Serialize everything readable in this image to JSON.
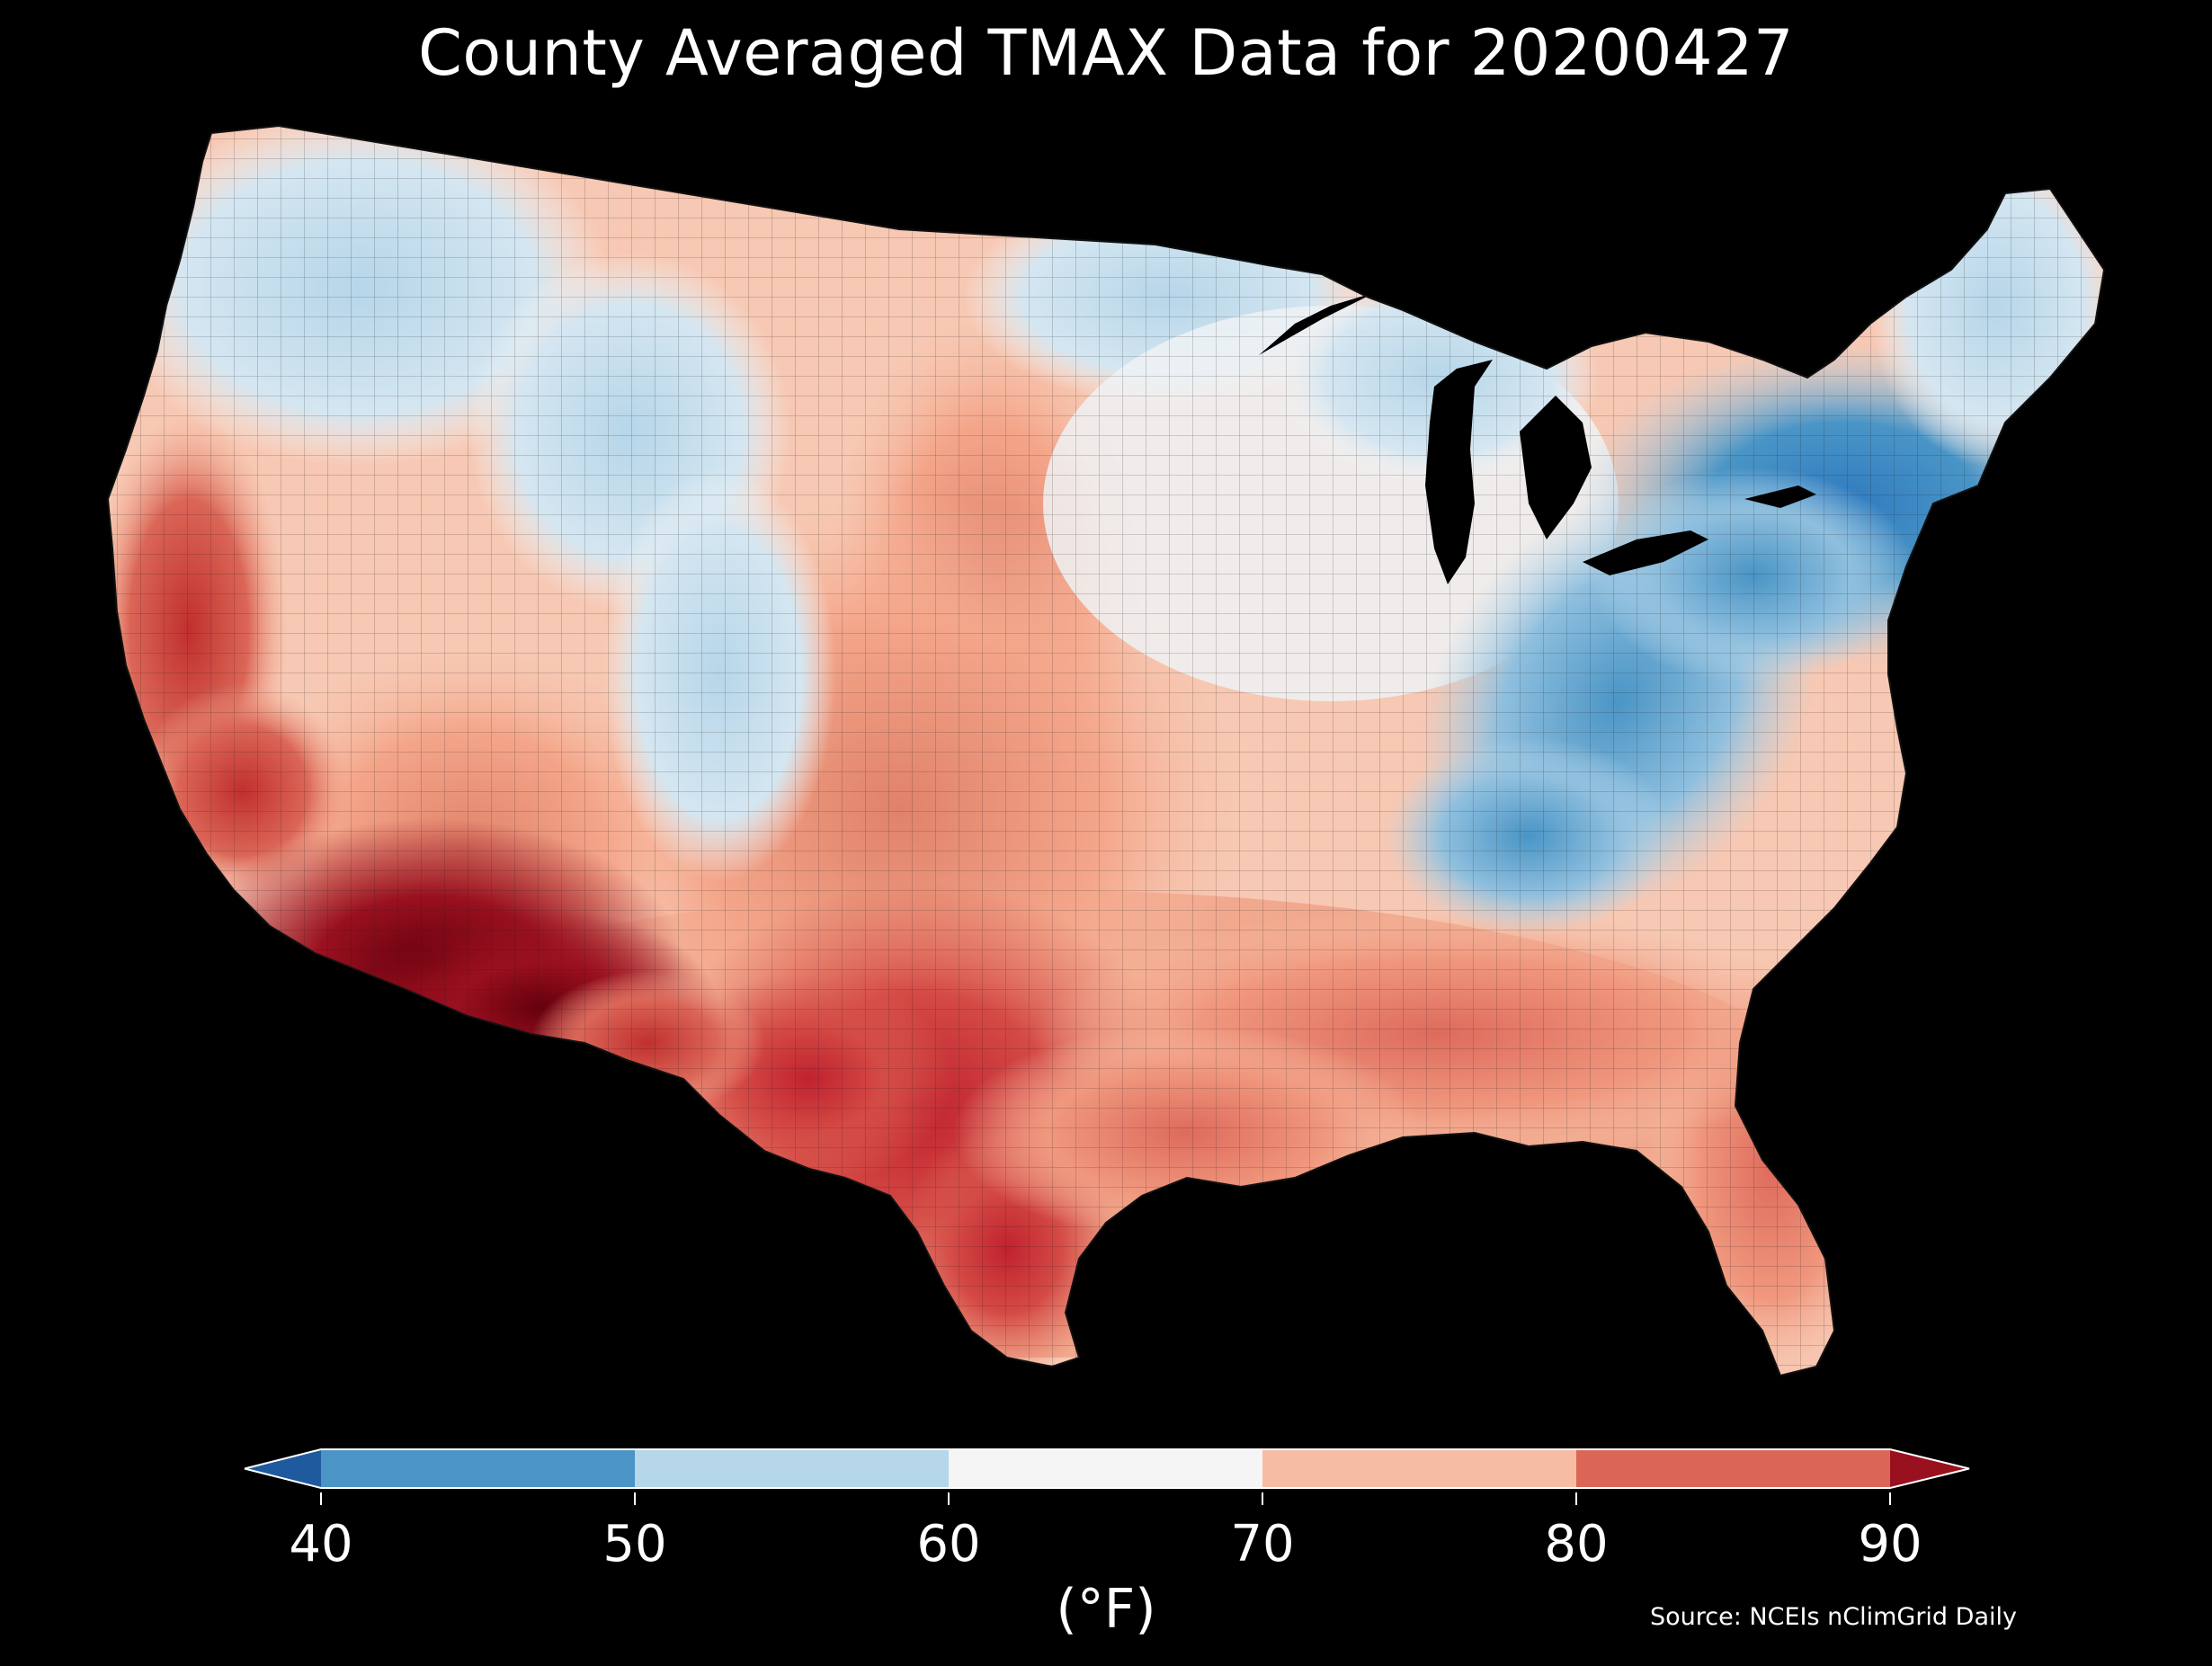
{
  "title": "County Averaged TMAX Data for 20200427",
  "colorbar": {
    "ticks": [
      "40",
      "50",
      "60",
      "70",
      "80",
      "90"
    ],
    "unit": "(°F)",
    "bins": [
      {
        "range": [
          30,
          40
        ],
        "color": "#1f5a9e"
      },
      {
        "range": [
          40,
          50
        ],
        "color": "#4a95c6"
      },
      {
        "range": [
          50,
          60
        ],
        "color": "#b6d6e9"
      },
      {
        "range": [
          60,
          70
        ],
        "color": "#f5f5f5"
      },
      {
        "range": [
          70,
          80
        ],
        "color": "#f7bda4"
      },
      {
        "range": [
          80,
          90
        ],
        "color": "#db6657"
      },
      {
        "range": [
          90,
          100
        ],
        "color": "#99101f"
      }
    ]
  },
  "source": "Source: NCEIs nClimGrid Daily",
  "map_colors": {
    "background": "#000000",
    "lake_water": "#000000",
    "county_border": "#222222"
  }
}
